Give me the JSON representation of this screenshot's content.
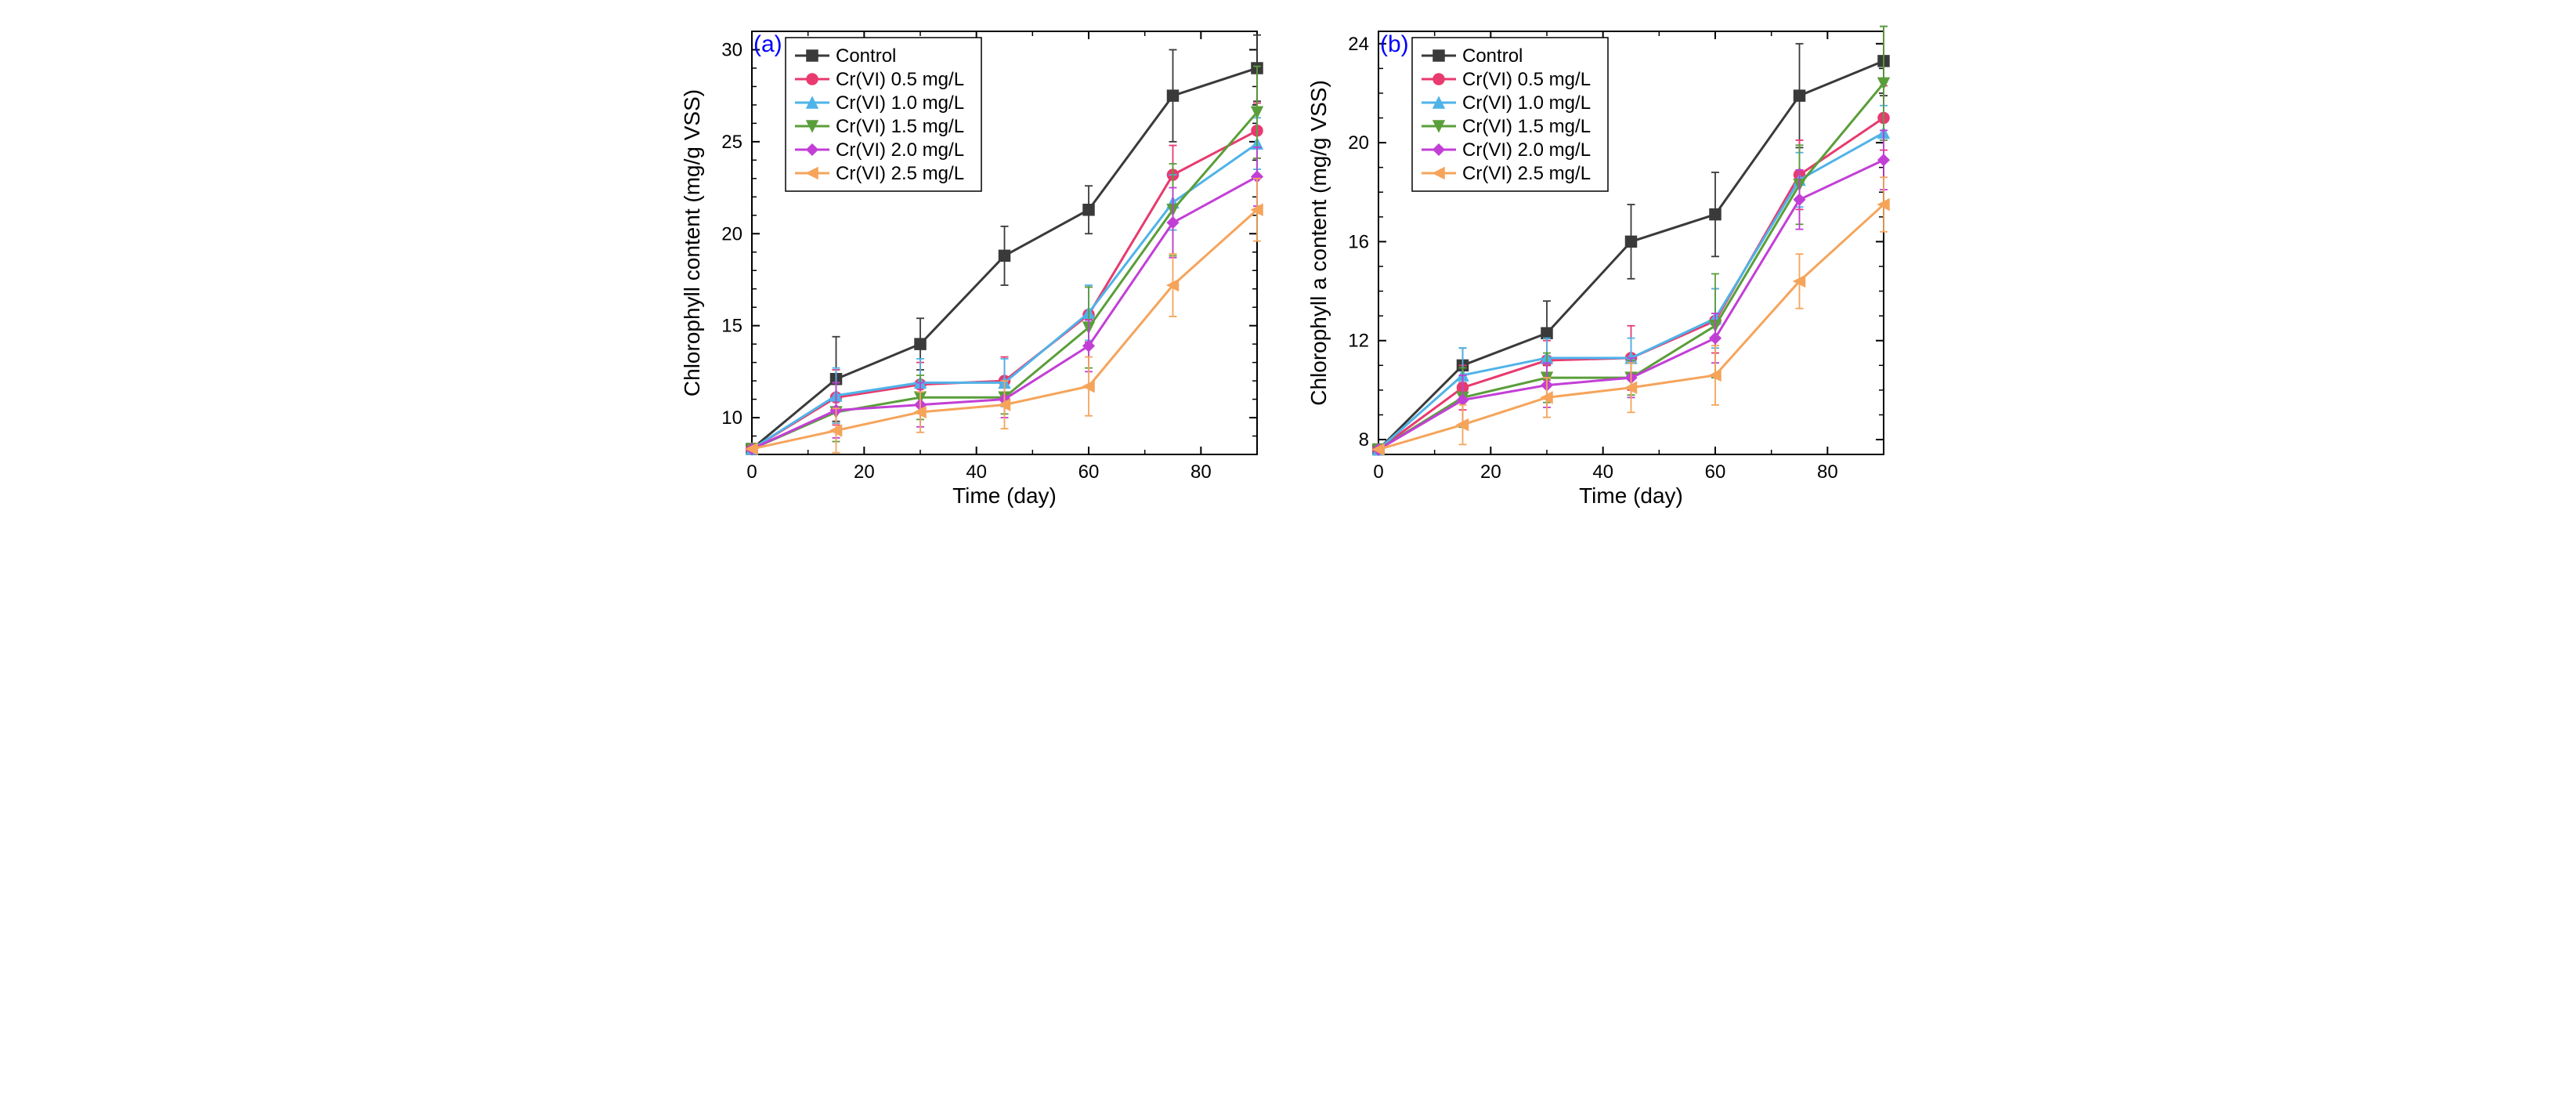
{
  "figure": {
    "background_color": "#ffffff",
    "axis_color": "#000000",
    "font_family": "Arial",
    "tick_fontsize": 24,
    "label_fontsize": 28,
    "tag_fontsize": 30,
    "legend_fontsize": 24,
    "line_width": 3,
    "marker_size": 7,
    "cap_width": 10,
    "tick_len_major": 10,
    "tick_len_minor": 6
  },
  "series_meta": [
    {
      "key": "control",
      "label": "Control",
      "color": "#3a3a3a",
      "marker": "square"
    },
    {
      "key": "cr05",
      "label": "Cr(VI) 0.5 mg/L",
      "color": "#e83a6f",
      "marker": "circle"
    },
    {
      "key": "cr10",
      "label": "Cr(VI) 1.0 mg/L",
      "color": "#4fb3e8",
      "marker": "triangle-up"
    },
    {
      "key": "cr15",
      "label": "Cr(VI) 1.5 mg/L",
      "color": "#5a9e3a",
      "marker": "triangle-down"
    },
    {
      "key": "cr20",
      "label": "Cr(VI) 2.0 mg/L",
      "color": "#c23fd6",
      "marker": "diamond"
    },
    {
      "key": "cr25",
      "label": "Cr(VI) 2.5 mg/L",
      "color": "#f5a45a",
      "marker": "triangle-left"
    }
  ],
  "panels": [
    {
      "tag": "(a)",
      "xlabel": "Time (day)",
      "ylabel": "Chlorophyll content (mg/g VSS)",
      "xlim": [
        0,
        90
      ],
      "ylim": [
        8,
        31
      ],
      "xticks": [
        0,
        20,
        40,
        60,
        80
      ],
      "xminor": [
        10,
        30,
        50,
        70,
        90
      ],
      "yticks": [
        10,
        15,
        20,
        25,
        30
      ],
      "yminor_step": 1,
      "x": [
        0,
        15,
        30,
        45,
        60,
        75,
        90
      ],
      "legend_box": {
        "x": 6,
        "y_top": 31,
        "w": 38,
        "h_rows": 6
      },
      "data": {
        "control": {
          "y": [
            8.3,
            12.1,
            14.0,
            18.8,
            21.3,
            27.5,
            29.0
          ],
          "err": [
            0.0,
            2.3,
            1.4,
            1.6,
            1.3,
            2.5,
            1.8
          ]
        },
        "cr05": {
          "y": [
            8.3,
            11.1,
            11.8,
            12.0,
            15.6,
            23.2,
            25.6
          ],
          "err": [
            0.0,
            1.5,
            1.2,
            1.3,
            1.5,
            1.6,
            1.5
          ]
        },
        "cr10": {
          "y": [
            8.3,
            11.2,
            11.9,
            11.9,
            15.7,
            21.7,
            24.9
          ],
          "err": [
            0.0,
            1.5,
            1.3,
            1.3,
            1.5,
            1.5,
            1.4
          ]
        },
        "cr15": {
          "y": [
            8.3,
            10.3,
            11.1,
            11.1,
            14.9,
            21.3,
            26.6
          ],
          "err": [
            0.0,
            1.6,
            1.2,
            0.9,
            2.2,
            2.5,
            2.5
          ]
        },
        "cr20": {
          "y": [
            8.3,
            10.4,
            10.7,
            11.0,
            13.9,
            20.6,
            23.1
          ],
          "err": [
            0.0,
            1.5,
            1.2,
            1.0,
            1.4,
            1.9,
            1.6
          ]
        },
        "cr25": {
          "y": [
            8.3,
            9.3,
            10.3,
            10.7,
            11.7,
            17.2,
            21.3
          ],
          "err": [
            0.0,
            1.2,
            1.1,
            1.3,
            1.6,
            1.7,
            1.7
          ]
        }
      }
    },
    {
      "tag": "(b)",
      "xlabel": "Time (day)",
      "ylabel": "Chlorophyll a content (mg/g VSS)",
      "xlim": [
        0,
        90
      ],
      "ylim": [
        7.4,
        24.5
      ],
      "xticks": [
        0,
        20,
        40,
        60,
        80
      ],
      "xminor": [
        10,
        30,
        50,
        70,
        90
      ],
      "yticks": [
        8,
        12,
        16,
        20,
        24
      ],
      "yminor_step": 1,
      "x": [
        0,
        15,
        30,
        45,
        60,
        75,
        90
      ],
      "legend_box": {
        "x": 6,
        "y_top": 24.5,
        "w": 38,
        "h_rows": 6
      },
      "data": {
        "control": {
          "y": [
            7.6,
            11.0,
            12.3,
            16.0,
            17.1,
            21.9,
            23.3
          ],
          "err": [
            0.0,
            0.7,
            1.3,
            1.5,
            1.7,
            2.1,
            1.4
          ]
        },
        "cr05": {
          "y": [
            7.6,
            10.1,
            11.2,
            11.3,
            12.8,
            18.7,
            21.0
          ],
          "err": [
            0.0,
            0.9,
            0.8,
            1.3,
            1.3,
            1.4,
            1.3
          ]
        },
        "cr10": {
          "y": [
            7.6,
            10.6,
            11.3,
            11.3,
            12.9,
            18.5,
            20.4
          ],
          "err": [
            0.0,
            1.1,
            0.8,
            0.8,
            1.2,
            1.1,
            1.1
          ]
        },
        "cr15": {
          "y": [
            7.6,
            9.7,
            10.5,
            10.5,
            12.6,
            18.3,
            22.4
          ],
          "err": [
            0.0,
            1.2,
            1.0,
            0.7,
            2.1,
            1.6,
            2.3
          ]
        },
        "cr20": {
          "y": [
            7.6,
            9.6,
            10.2,
            10.5,
            12.1,
            17.7,
            19.3
          ],
          "err": [
            0.0,
            1.0,
            0.9,
            0.8,
            1.0,
            1.2,
            1.2
          ]
        },
        "cr25": {
          "y": [
            7.6,
            8.6,
            9.7,
            10.1,
            10.6,
            14.4,
            17.5
          ],
          "err": [
            0.0,
            0.8,
            0.8,
            1.0,
            1.2,
            1.1,
            1.1
          ]
        }
      }
    }
  ]
}
